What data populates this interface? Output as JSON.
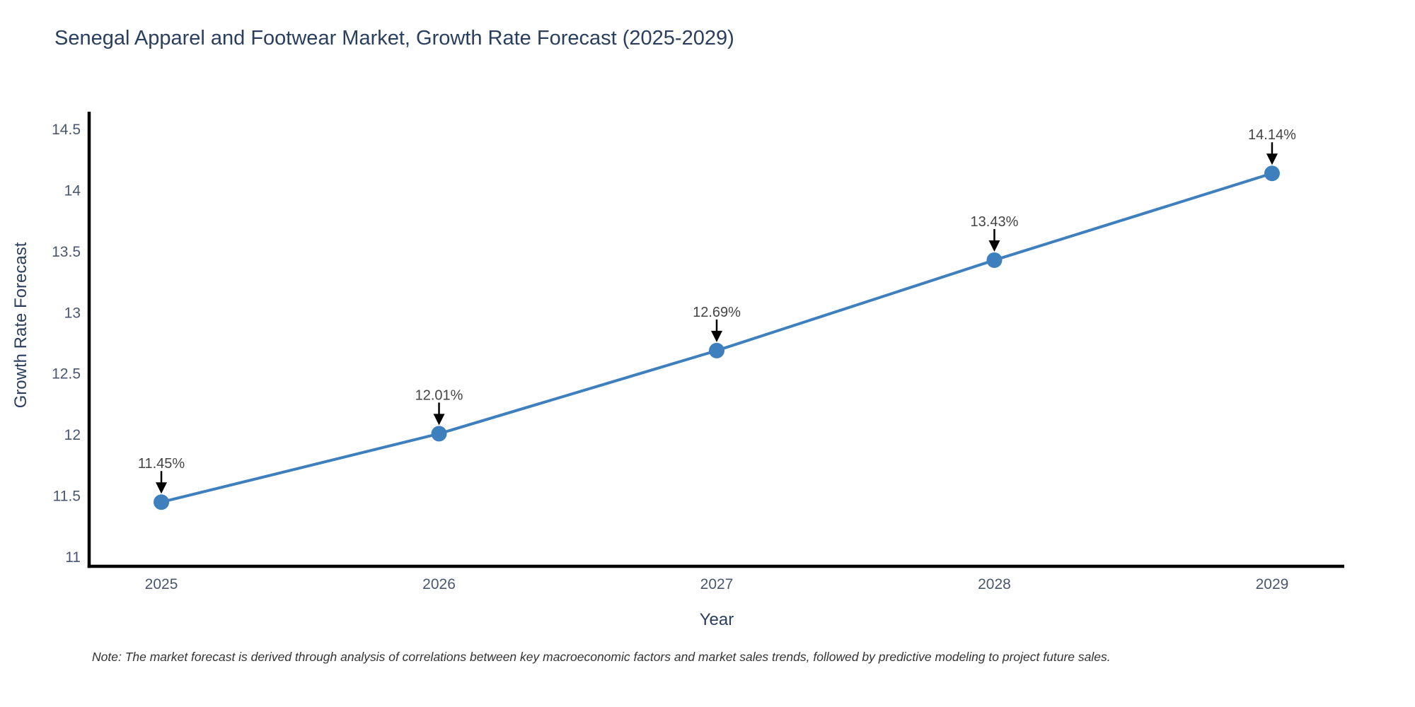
{
  "chart_data": {
    "type": "line",
    "title": "Senegal Apparel and Footwear Market, Growth Rate Forecast (2025-2029)",
    "xlabel": "Year",
    "ylabel": "Growth Rate Forecast",
    "categories": [
      2025,
      2026,
      2027,
      2028,
      2029
    ],
    "series": [
      {
        "name": "Growth Rate Forecast",
        "values": [
          11.45,
          12.01,
          12.69,
          13.43,
          14.14
        ],
        "point_labels": [
          "11.45%",
          "12.01%",
          "12.69%",
          "13.43%",
          "14.14%"
        ]
      }
    ],
    "ytick_values": [
      11,
      11.5,
      12,
      12.5,
      13,
      13.5,
      14,
      14.5
    ],
    "ytick_labels": [
      "11",
      "11.5",
      "12",
      "12.5",
      "13",
      "13.5",
      "14",
      "14.5"
    ],
    "xtick_labels": [
      "2025",
      "2026",
      "2027",
      "2028",
      "2029"
    ],
    "ylim": [
      10.925,
      14.633
    ],
    "xlim": [
      2024.74,
      2029.26
    ],
    "grid": false,
    "legend": "none",
    "annotation_arrows": true,
    "colors": {
      "line": "#3e7fbd",
      "marker": "#3e7fbd",
      "axis": "#000000",
      "title_text": "#2a3f5f",
      "tick_text": "#49576e",
      "annotation_text": "#444444",
      "arrow": "#000000",
      "note_text": "#333333",
      "background": "#ffffff"
    }
  },
  "footer": {
    "note": "Note: The market forecast is derived through analysis of correlations between key macroeconomic factors and market sales trends, followed by predictive modeling to project future sales."
  }
}
